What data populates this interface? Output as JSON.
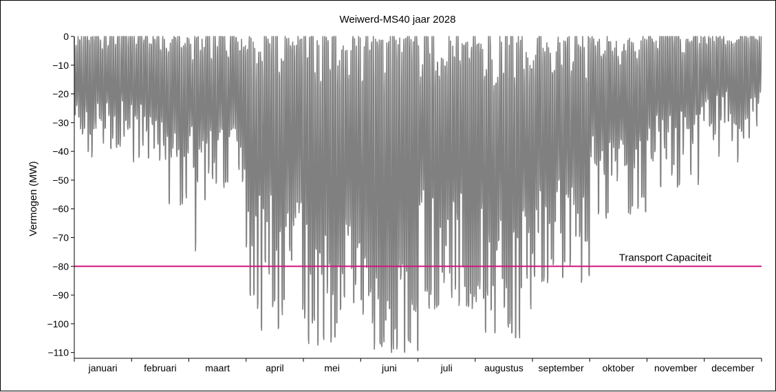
{
  "chart_data": {
    "type": "line",
    "title": "Weiwerd-MS40 jaar 2028",
    "xlabel": "",
    "ylabel": "Vermogen (MW)",
    "ylim": [
      -112,
      0
    ],
    "yticks": [
      0,
      -10,
      -20,
      -30,
      -40,
      -50,
      -60,
      -70,
      -80,
      -90,
      -100,
      -110
    ],
    "ytick_labels": [
      "0",
      "−10",
      "−20",
      "−30",
      "−40",
      "−50",
      "−60",
      "−70",
      "−80",
      "−90",
      "−100",
      "−110"
    ],
    "x_unit": "month",
    "months": [
      "januari",
      "februari",
      "maart",
      "april",
      "mei",
      "juni",
      "juli",
      "augustus",
      "september",
      "oktober",
      "november",
      "december"
    ],
    "grid": false,
    "series": [
      {
        "name": "",
        "color": "#808080",
        "note_monthly_envelope": "approximate monthly range of the hourly power trace",
        "monthly_min": [
          -47,
          -61,
          -80,
          -106,
          -108,
          -110,
          -95,
          -105,
          -86,
          -65,
          -57,
          -46
        ],
        "monthly_typical_low": [
          -33,
          -35,
          -45,
          -75,
          -88,
          -95,
          -80,
          -85,
          -70,
          -50,
          -38,
          -30
        ],
        "monthly_max": [
          0,
          0,
          0,
          0,
          0,
          0,
          0,
          0,
          0,
          0,
          0,
          0
        ]
      }
    ],
    "reference_line": {
      "label": "Transport Capaciteit",
      "y": -80,
      "color": "#d6127f"
    }
  }
}
